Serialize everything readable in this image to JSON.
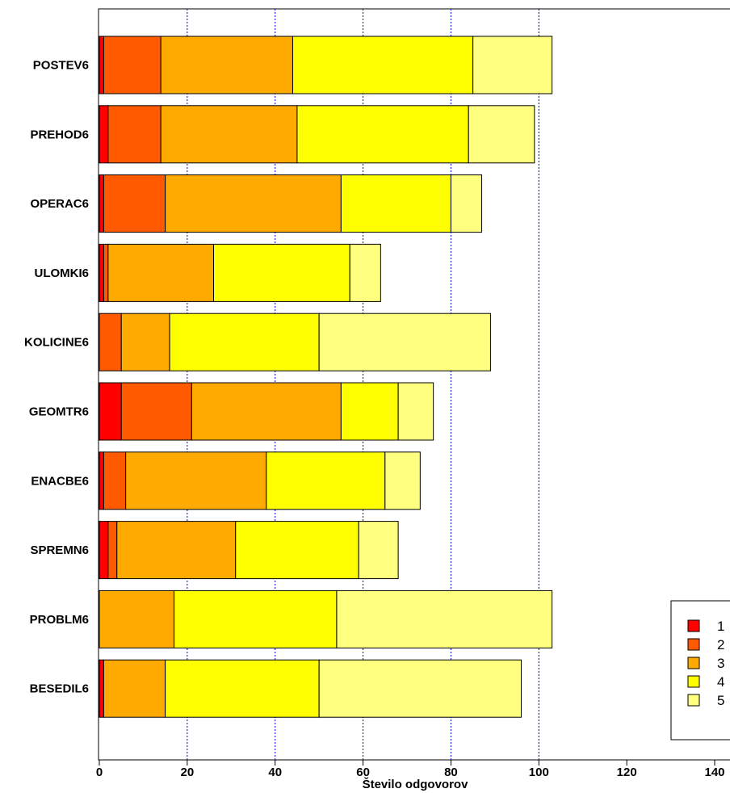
{
  "chart_data": {
    "type": "bar",
    "orientation": "horizontal",
    "stacked": true,
    "title": "",
    "xlabel": "Število odgovorov",
    "ylabel": "",
    "xlim": [
      0,
      142
    ],
    "xticks": [
      0,
      20,
      40,
      60,
      80,
      100,
      120,
      140
    ],
    "gridlines_x": [
      20,
      40,
      60,
      80,
      100
    ],
    "legend_position": "bottom-right",
    "categories": [
      "POSTEV6",
      "PREHOD6",
      "OPERAC6",
      "ULOMKI6",
      "KOLICINE6",
      "GEOMTR6",
      "ENACBE6",
      "SPREMN6",
      "PROBLM6",
      "BESEDIL6"
    ],
    "series": [
      {
        "name": "1",
        "color": "#ff0000",
        "values": [
          1,
          2,
          1,
          1,
          0,
          5,
          1,
          2,
          0,
          1
        ]
      },
      {
        "name": "2",
        "color": "#ff5a00",
        "values": [
          13,
          12,
          14,
          1,
          5,
          16,
          5,
          2,
          0,
          0
        ]
      },
      {
        "name": "3",
        "color": "#ffaa00",
        "values": [
          30,
          31,
          40,
          24,
          11,
          34,
          32,
          27,
          17,
          14
        ]
      },
      {
        "name": "4",
        "color": "#ffff00",
        "values": [
          41,
          39,
          25,
          31,
          34,
          13,
          27,
          28,
          37,
          35
        ]
      },
      {
        "name": "5",
        "color": "#ffff80",
        "values": [
          18,
          15,
          7,
          7,
          39,
          8,
          8,
          9,
          49,
          46
        ]
      }
    ]
  }
}
